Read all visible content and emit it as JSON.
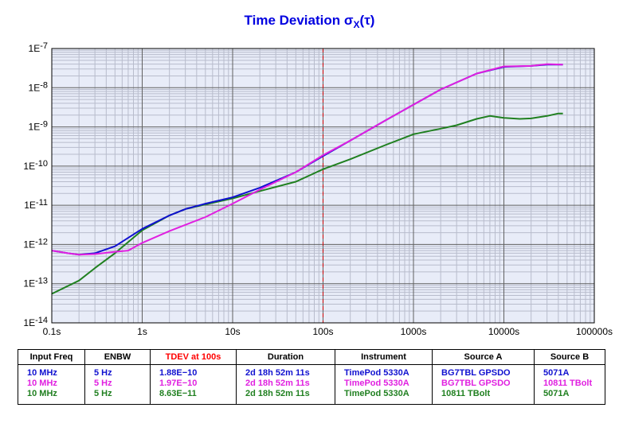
{
  "title": "Time Deviation",
  "title_symbol": "σ",
  "title_sub": "X",
  "title_arg": "(τ)",
  "chart_data": {
    "type": "line",
    "xscale": "log",
    "yscale": "log",
    "xlim": [
      0.1,
      100000
    ],
    "ylim": [
      1e-14,
      1e-07
    ],
    "x_tick_labels": [
      "0.1s",
      "1s",
      "10s",
      "100s",
      "1000s",
      "10000s",
      "100000s"
    ],
    "y_tick_labels": [
      "1E-7",
      "1E-8",
      "1E-9",
      "1E-10",
      "1E-11",
      "1E-12",
      "1E-13",
      "1E-14"
    ],
    "grid": true,
    "reference_line": {
      "x": 100,
      "color": "#cc0000",
      "style": "dashed"
    },
    "series": [
      {
        "color": "#1010d0",
        "points": [
          [
            0.1,
            7e-13
          ],
          [
            0.15,
            6e-13
          ],
          [
            0.2,
            5.5e-13
          ],
          [
            0.3,
            6e-13
          ],
          [
            0.5,
            9e-13
          ],
          [
            1,
            2.5e-12
          ],
          [
            2,
            5.5e-12
          ],
          [
            3,
            8e-12
          ],
          [
            5,
            1.1e-11
          ],
          [
            10,
            1.6e-11
          ],
          [
            20,
            2.8e-11
          ],
          [
            50,
            7e-11
          ],
          [
            100,
            1.8e-10
          ],
          [
            200,
            4.5e-10
          ],
          [
            500,
            1.5e-09
          ],
          [
            1000,
            3.7e-09
          ],
          [
            2000,
            9e-09
          ],
          [
            5000,
            2.3e-08
          ],
          [
            10000,
            3.4e-08
          ],
          [
            20000,
            3.6e-08
          ],
          [
            30000,
            3.9e-08
          ],
          [
            45000,
            3.9e-08
          ]
        ]
      },
      {
        "color": "#e020e0",
        "points": [
          [
            0.1,
            7e-13
          ],
          [
            0.15,
            6e-13
          ],
          [
            0.2,
            5.5e-13
          ],
          [
            0.3,
            5.7e-13
          ],
          [
            0.5,
            6.5e-13
          ],
          [
            0.7,
            7e-13
          ],
          [
            1,
            1.1e-12
          ],
          [
            2,
            2.2e-12
          ],
          [
            5,
            5e-12
          ],
          [
            10,
            1.1e-11
          ],
          [
            20,
            2.5e-11
          ],
          [
            50,
            7e-11
          ],
          [
            100,
            1.9e-10
          ],
          [
            200,
            4.5e-10
          ],
          [
            500,
            1.5e-09
          ],
          [
            1000,
            3.7e-09
          ],
          [
            2000,
            9e-09
          ],
          [
            5000,
            2.3e-08
          ],
          [
            10000,
            3.5e-08
          ],
          [
            20000,
            3.6e-08
          ],
          [
            30000,
            4e-08
          ],
          [
            45000,
            3.9e-08
          ]
        ]
      },
      {
        "color": "#208020",
        "points": [
          [
            0.1,
            5.5e-14
          ],
          [
            0.2,
            1.2e-13
          ],
          [
            0.3,
            2.5e-13
          ],
          [
            0.5,
            6e-13
          ],
          [
            1,
            2.3e-12
          ],
          [
            2,
            5.5e-12
          ],
          [
            3,
            8e-12
          ],
          [
            5,
            1.05e-11
          ],
          [
            10,
            1.5e-11
          ],
          [
            20,
            2.3e-11
          ],
          [
            50,
            4e-11
          ],
          [
            100,
            8.3e-11
          ],
          [
            200,
            1.5e-10
          ],
          [
            500,
            3.5e-10
          ],
          [
            1000,
            6.5e-10
          ],
          [
            2000,
            9e-10
          ],
          [
            3000,
            1.1e-09
          ],
          [
            5000,
            1.6e-09
          ],
          [
            7000,
            1.9e-09
          ],
          [
            10000,
            1.7e-09
          ],
          [
            15000,
            1.6e-09
          ],
          [
            20000,
            1.65e-09
          ],
          [
            30000,
            1.9e-09
          ],
          [
            40000,
            2.2e-09
          ],
          [
            45000,
            2.2e-09
          ]
        ]
      }
    ]
  },
  "table": {
    "headers": [
      "Input Freq",
      "ENBW",
      "TDEV at 100s",
      "Duration",
      "Instrument",
      "Source A",
      "Source B"
    ],
    "header_colors": [
      "#000000",
      "#000000",
      "#ff0000",
      "#000000",
      "#000000",
      "#000000",
      "#000000"
    ],
    "rows": [
      {
        "color": "#1010d0",
        "cells": [
          "10 MHz",
          "5 Hz",
          "1.88E−10",
          "2d 18h 52m 11s",
          "TimePod 5330A",
          "BG7TBL GPSDO",
          "5071A"
        ]
      },
      {
        "color": "#e020e0",
        "cells": [
          "10 MHz",
          "5 Hz",
          "1.97E−10",
          "2d 18h 52m 11s",
          "TimePod 5330A",
          "BG7TBL GPSDO",
          "10811 TBolt"
        ]
      },
      {
        "color": "#208020",
        "cells": [
          "10 MHz",
          "5 Hz",
          "8.63E−11",
          "2d 18h 52m 11s",
          "TimePod 5330A",
          "10811 TBolt",
          "5071A"
        ]
      }
    ]
  }
}
